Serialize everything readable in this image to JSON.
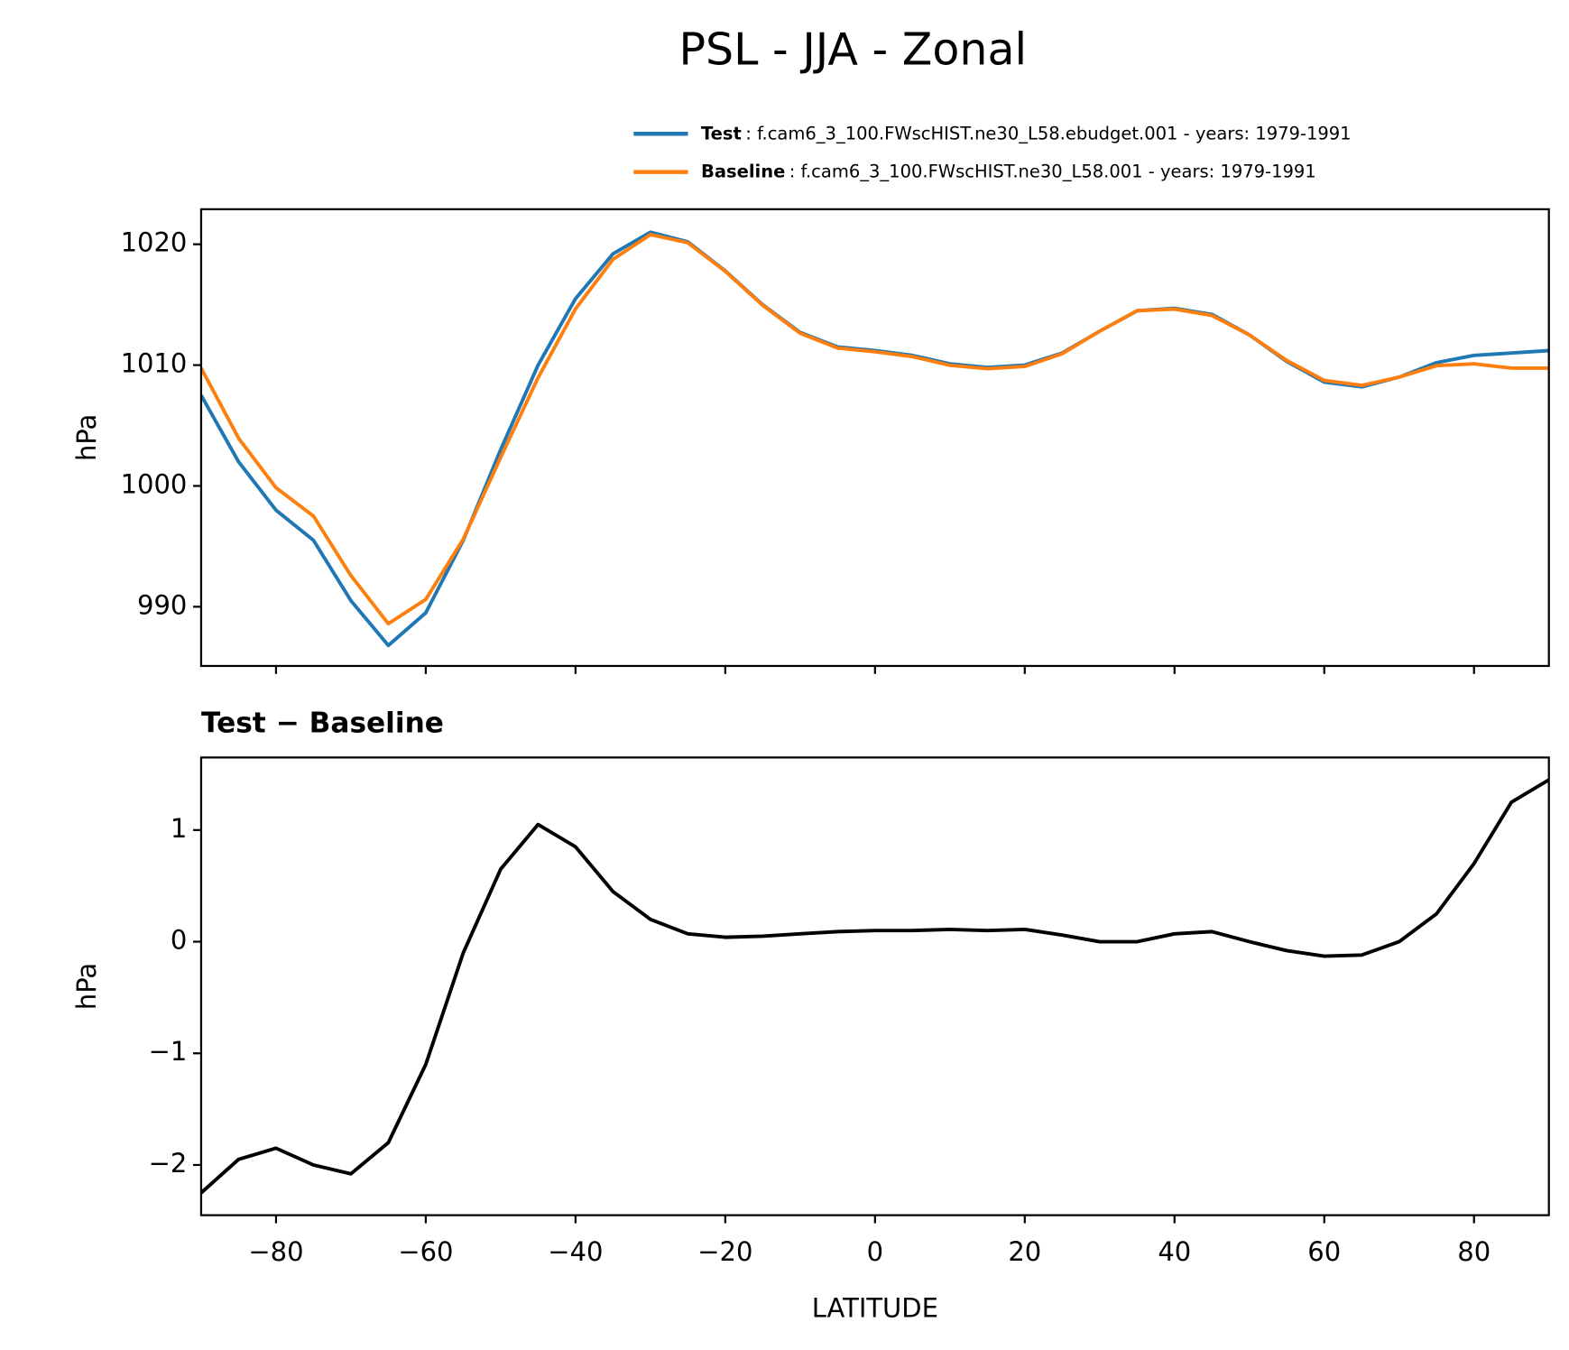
{
  "title": "PSL - JJA - Zonal",
  "chart_data": [
    {
      "type": "line",
      "ylabel": "hPa",
      "x": [
        -90,
        -85,
        -80,
        -75,
        -70,
        -65,
        -60,
        -55,
        -50,
        -45,
        -40,
        -35,
        -30,
        -25,
        -20,
        -15,
        -10,
        -5,
        0,
        5,
        10,
        15,
        20,
        25,
        30,
        35,
        40,
        45,
        50,
        55,
        60,
        65,
        70,
        75,
        80,
        85,
        90
      ],
      "series": [
        {
          "name": "Test",
          "description": ": f.cam6_3_100.FWscHIST.ne30_L58.ebudget.001 - years: 1979-1991",
          "color": "#1f77b4",
          "values": [
            1007.5,
            1002,
            998,
            995.5,
            990.5,
            986.8,
            989.5,
            995.5,
            1003,
            1010,
            1015.5,
            1019.2,
            1021,
            1020.2,
            1017.8,
            1015,
            1012.7,
            1011.5,
            1011.2,
            1010.8,
            1010.1,
            1009.8,
            1010,
            1011,
            1012.8,
            1014.5,
            1014.7,
            1014.2,
            1012.5,
            1010.3,
            1008.6,
            1008.2,
            1009,
            1010.2,
            1010.8,
            1011,
            1011.2
          ]
        },
        {
          "name": "Baseline",
          "description": ": f.cam6_3_100.FWscHIST.ne30_L58.001 - years: 1979-1991",
          "color": "#ff7f0e",
          "values": [
            1009.75,
            1003.95,
            999.85,
            997.5,
            992.58,
            988.6,
            990.6,
            995.6,
            1002.35,
            1008.95,
            1014.65,
            1018.75,
            1020.8,
            1020.13,
            1017.76,
            1014.95,
            1012.63,
            1011.41,
            1011.1,
            1010.7,
            1009.99,
            1009.7,
            1009.89,
            1010.94,
            1012.8,
            1014.5,
            1014.63,
            1014.11,
            1012.5,
            1010.38,
            1008.73,
            1008.32,
            1009,
            1009.95,
            1010.1,
            1009.75,
            1009.75
          ]
        }
      ],
      "xlim": [
        -90,
        90
      ],
      "xticks": [
        -80,
        -60,
        -40,
        -20,
        0,
        20,
        40,
        60,
        80
      ],
      "ylim": [
        985.1,
        1022.9
      ],
      "yticks": [
        990,
        1000,
        1010,
        1020
      ]
    },
    {
      "type": "line",
      "title": "Test − Baseline",
      "xlabel": "LATITUDE",
      "ylabel": "hPa",
      "x": [
        -90,
        -85,
        -80,
        -75,
        -70,
        -65,
        -60,
        -55,
        -50,
        -45,
        -40,
        -35,
        -30,
        -25,
        -20,
        -15,
        -10,
        -5,
        0,
        5,
        10,
        15,
        20,
        25,
        30,
        35,
        40,
        45,
        50,
        55,
        60,
        65,
        70,
        75,
        80,
        85,
        90
      ],
      "series": [
        {
          "color": "#000000",
          "values": [
            -2.25,
            -1.95,
            -1.85,
            -2.0,
            -2.08,
            -1.8,
            -1.1,
            -0.1,
            0.65,
            1.05,
            0.85,
            0.45,
            0.2,
            0.07,
            0.04,
            0.05,
            0.07,
            0.09,
            0.1,
            0.1,
            0.11,
            0.1,
            0.11,
            0.06,
            0.0,
            0.0,
            0.07,
            0.09,
            0.0,
            -0.08,
            -0.13,
            -0.12,
            0.0,
            0.25,
            0.7,
            1.25,
            1.45
          ]
        }
      ],
      "xlim": [
        -90,
        90
      ],
      "xticks": [
        {
          "value": -80,
          "label": "−80"
        },
        {
          "value": -60,
          "label": "−60"
        },
        {
          "value": -40,
          "label": "−40"
        },
        {
          "value": -20,
          "label": "−20"
        },
        0,
        20,
        40,
        60,
        80
      ],
      "ylim": [
        -2.45,
        1.65
      ],
      "yticks": [
        {
          "value": -2,
          "label": "−2"
        },
        {
          "value": -1,
          "label": "−1"
        },
        0,
        1
      ]
    }
  ]
}
